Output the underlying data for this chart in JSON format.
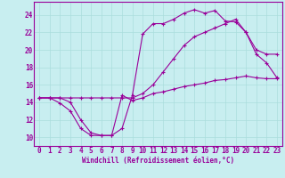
{
  "xlabel": "Windchill (Refroidissement éolien,°C)",
  "ylabel": "",
  "bg_color": "#c8eef0",
  "line_color": "#990099",
  "grid_color": "#aadddd",
  "xlim": [
    -0.5,
    23.5
  ],
  "ylim": [
    9.0,
    25.5
  ],
  "xticks": [
    0,
    1,
    2,
    3,
    4,
    5,
    6,
    7,
    8,
    9,
    10,
    11,
    12,
    13,
    14,
    15,
    16,
    17,
    18,
    19,
    20,
    21,
    22,
    23
  ],
  "yticks": [
    10,
    12,
    14,
    16,
    18,
    20,
    22,
    24
  ],
  "line1_x": [
    0,
    1,
    2,
    3,
    4,
    5,
    6,
    7,
    8,
    9,
    10,
    11,
    12,
    13,
    14,
    15,
    16,
    17,
    18,
    19,
    20,
    21,
    22,
    23
  ],
  "line1_y": [
    14.5,
    14.5,
    13.9,
    13.0,
    11.0,
    10.2,
    10.2,
    10.2,
    14.8,
    14.2,
    14.5,
    15.0,
    15.2,
    15.5,
    15.8,
    16.0,
    16.2,
    16.5,
    16.6,
    16.8,
    17.0,
    16.8,
    16.7,
    16.7
  ],
  "line2_x": [
    0,
    1,
    2,
    3,
    4,
    5,
    6,
    7,
    8,
    9,
    10,
    11,
    12,
    13,
    14,
    15,
    16,
    17,
    18,
    19,
    20,
    21,
    22,
    23
  ],
  "line2_y": [
    14.5,
    14.5,
    14.5,
    14.5,
    14.5,
    14.5,
    14.5,
    14.5,
    14.5,
    14.5,
    15.0,
    16.0,
    17.5,
    19.0,
    20.5,
    21.5,
    22.0,
    22.5,
    23.0,
    23.5,
    22.0,
    20.0,
    19.5,
    19.5
  ],
  "line3_x": [
    0,
    1,
    2,
    3,
    4,
    5,
    6,
    7,
    8,
    9,
    10,
    11,
    12,
    13,
    14,
    15,
    16,
    17,
    18,
    19,
    20,
    21,
    22,
    23
  ],
  "line3_y": [
    14.5,
    14.5,
    14.5,
    14.0,
    12.0,
    10.5,
    10.2,
    10.2,
    11.0,
    14.8,
    21.8,
    23.0,
    23.0,
    23.5,
    24.2,
    24.6,
    24.2,
    24.5,
    23.3,
    23.2,
    22.0,
    19.5,
    18.5,
    16.8
  ],
  "tick_fontsize": 5.5,
  "xlabel_fontsize": 5.5
}
